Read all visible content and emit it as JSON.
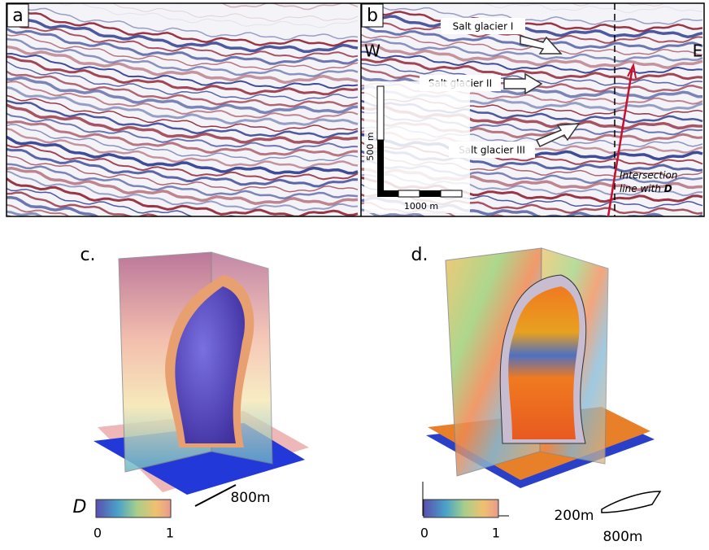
{
  "panels": {
    "a": {
      "label": "a"
    },
    "b": {
      "label": "b",
      "west": "W",
      "east": "E",
      "annotations": [
        "Salt glacier I",
        "Salt glacier II",
        "Salt glacier III"
      ],
      "scale_vertical": "500 m",
      "scale_horizontal": "1000 m",
      "intersection": {
        "line_1": "Intersection",
        "line_2": "line with",
        "emphasis": "D"
      }
    },
    "c": {
      "label": "c.",
      "colorbar_title": "D",
      "colorbar_min": "0",
      "colorbar_max": "1",
      "scale": "800m"
    },
    "d": {
      "label": "d.",
      "colorbar_min": "0",
      "colorbar_max": "1",
      "scale_short": "200m",
      "scale_long": "800m"
    }
  }
}
